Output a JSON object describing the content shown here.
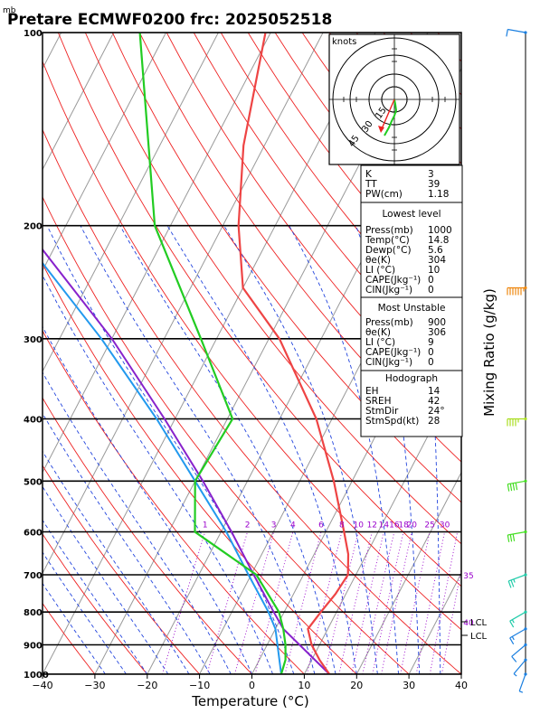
{
  "header": {
    "unit_label": "mb",
    "title": "Pretare ECMWF0200 frc: 2025052518"
  },
  "axes": {
    "xlabel": "Temperature (°C)",
    "right_label": "Mixing Ratio (g/kg)",
    "pressure_ticks": [
      "100",
      "200",
      "300",
      "400",
      "500",
      "600",
      "700",
      "800",
      "900",
      "1000"
    ],
    "temp_ticks": [
      "−40",
      "−30",
      "−20",
      "−10",
      "0",
      "10",
      "20",
      "30",
      "40"
    ]
  },
  "mixing_ratio_labels": [
    "1",
    "2",
    "3",
    "4",
    "6",
    "8",
    "10",
    "12",
    "14",
    "16",
    "18",
    "20",
    "25",
    "30",
    "35",
    "40"
  ],
  "lcl_labels": [
    "LCL",
    "LCL"
  ],
  "hodograph": {
    "unit_label": "knots",
    "ring_labels": [
      "15",
      "30",
      "45"
    ]
  },
  "indices": {
    "top": [
      {
        "k": "K",
        "v": "3"
      },
      {
        "k": "TT",
        "v": "39"
      },
      {
        "k": "PW(cm)",
        "v": "1.18"
      }
    ],
    "lowest_title": "Lowest level",
    "lowest": [
      {
        "k": "Press(mb)",
        "v": "1000"
      },
      {
        "k": "Temp(°C)",
        "v": "14.8"
      },
      {
        "k": "Dewp(°C)",
        "v": "5.6"
      },
      {
        "k": "θe(K)",
        "v": "304"
      },
      {
        "k": "LI (°C)",
        "v": "10"
      },
      {
        "k": "CAPE(Jkg⁻¹)",
        "v": "0"
      },
      {
        "k": "CIN(Jkg⁻¹)",
        "v": "0"
      }
    ],
    "unstable_title": "Most Unstable",
    "unstable": [
      {
        "k": "Press(mb)",
        "v": "900"
      },
      {
        "k": "θe(K)",
        "v": "306"
      },
      {
        "k": "LI (°C)",
        "v": "9"
      },
      {
        "k": "CAPE(Jkg⁻¹)",
        "v": "0"
      },
      {
        "k": "CIN(Jkg⁻¹)",
        "v": "0"
      }
    ],
    "hodo_title": "Hodograph",
    "hodo": [
      {
        "k": "EH",
        "v": "14"
      },
      {
        "k": "SREH",
        "v": "42"
      },
      {
        "k": "StmDir",
        "v": "24°"
      },
      {
        "k": "StmSpd(kt)",
        "v": "28"
      }
    ]
  },
  "colors": {
    "temperature": "#ee4444",
    "dewpoint": "#22cc22",
    "parcel": "#8822cc",
    "parcel_dry": "#2299ee",
    "isotherm": "#999999",
    "dry_adiabat": "#ee2222",
    "moist_adiabat": "#2244dd",
    "mixing_ratio": "#9900cc"
  },
  "chart_data": {
    "type": "line",
    "title": "Pretare ECMWF0200 frc: 2025052518",
    "xlabel": "Temperature (°C)",
    "ylabel": "",
    "xlim": [
      -40,
      40
    ],
    "ylim": [
      1000,
      100
    ],
    "y_scale": "log",
    "grid": true,
    "series": [
      {
        "points": [
          {
            "p": 1000,
            "t": 14.8
          },
          {
            "p": 950,
            "t": 11.5
          },
          {
            "p": 900,
            "t": 8.5
          },
          {
            "p": 850,
            "t": 6.2
          },
          {
            "p": 800,
            "t": 7.0
          },
          {
            "p": 750,
            "t": 8.0
          },
          {
            "p": 700,
            "t": 8.5
          },
          {
            "p": 650,
            "t": 6.5
          },
          {
            "p": 600,
            "t": 3.5
          },
          {
            "p": 500,
            "t": -3.5
          },
          {
            "p": 400,
            "t": -13.0
          },
          {
            "p": 300,
            "t": -28.0
          },
          {
            "p": 250,
            "t": -40.0
          },
          {
            "p": 200,
            "t": -47.0
          },
          {
            "p": 150,
            "t": -54.0
          },
          {
            "p": 100,
            "t": -61.0
          }
        ]
      },
      {
        "points": [
          {
            "p": 1000,
            "t": 5.6
          },
          {
            "p": 950,
            "t": 5.0
          },
          {
            "p": 900,
            "t": 3.5
          },
          {
            "p": 850,
            "t": 1.5
          },
          {
            "p": 800,
            "t": -1.0
          },
          {
            "p": 700,
            "t": -9.0
          },
          {
            "p": 600,
            "t": -25.0
          },
          {
            "p": 500,
            "t": -30.0
          },
          {
            "p": 400,
            "t": -29.0
          },
          {
            "p": 300,
            "t": -43.0
          },
          {
            "p": 200,
            "t": -63.0
          },
          {
            "p": 100,
            "t": -85.0
          }
        ]
      },
      {
        "points": [
          {
            "p": 1000,
            "t": 14.8
          },
          {
            "p": 850,
            "t": 1.5
          },
          {
            "p": 800,
            "t": -2.0
          },
          {
            "p": 700,
            "t": -9.5
          },
          {
            "p": 600,
            "t": -18.0
          },
          {
            "p": 500,
            "t": -28.5
          },
          {
            "p": 400,
            "t": -42.0
          },
          {
            "p": 300,
            "t": -60.0
          },
          {
            "p": 200,
            "t": -88.0
          },
          {
            "p": 150,
            "t": -103.0
          },
          {
            "p": 100,
            "t": -122.0
          }
        ]
      },
      {
        "points": [
          {
            "p": 1000,
            "t": 5.6
          },
          {
            "p": 850,
            "t": 0.0
          },
          {
            "p": 800,
            "t": -3.0
          },
          {
            "p": 700,
            "t": -10.5
          },
          {
            "p": 600,
            "t": -19.0
          },
          {
            "p": 500,
            "t": -30.0
          },
          {
            "p": 400,
            "t": -43.5
          },
          {
            "p": 300,
            "t": -62.0
          },
          {
            "p": 200,
            "t": -90.0
          },
          {
            "p": 150,
            "t": -105.0
          },
          {
            "p": 100,
            "t": -125.0
          }
        ]
      }
    ],
    "wind_barbs": [
      {
        "p": 1000,
        "dir": 200,
        "kt": 5
      },
      {
        "p": 950,
        "dir": 220,
        "kt": 8
      },
      {
        "p": 900,
        "dir": 230,
        "kt": 10
      },
      {
        "p": 850,
        "dir": 240,
        "kt": 15
      },
      {
        "p": 800,
        "dir": 240,
        "kt": 18
      },
      {
        "p": 700,
        "dir": 250,
        "kt": 25
      },
      {
        "p": 600,
        "dir": 260,
        "kt": 30
      },
      {
        "p": 500,
        "dir": 260,
        "kt": 40
      },
      {
        "p": 400,
        "dir": 270,
        "kt": 45
      },
      {
        "p": 250,
        "dir": 270,
        "kt": 65
      },
      {
        "p": 100,
        "dir": 280,
        "kt": 10
      }
    ]
  }
}
